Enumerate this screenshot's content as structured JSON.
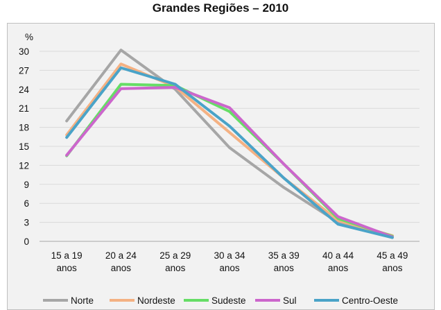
{
  "chart_data": {
    "type": "line",
    "title": "Grandes Regiões – 2010",
    "ylabel": "%",
    "xlabel": "",
    "categories": [
      [
        "15 a 19",
        "anos"
      ],
      [
        "20 a 24",
        "anos"
      ],
      [
        "25 a 29",
        "anos"
      ],
      [
        "30 a 34",
        "anos"
      ],
      [
        "35 a 39",
        "anos"
      ],
      [
        "40 a 44",
        "anos"
      ],
      [
        "45 a 49",
        "anos"
      ]
    ],
    "yticks": [
      0,
      3,
      6,
      9,
      12,
      15,
      18,
      21,
      24,
      27,
      30
    ],
    "ylim": [
      0,
      30
    ],
    "grid": true,
    "legend_position": "bottom",
    "series": [
      {
        "name": "Norte",
        "color": "#a6a6a6",
        "values": [
          19.0,
          30.2,
          24.0,
          14.8,
          8.5,
          3.0,
          0.6
        ]
      },
      {
        "name": "Nordeste",
        "color": "#f4b183",
        "values": [
          16.8,
          28.0,
          24.4,
          17.2,
          10.0,
          3.3,
          0.9
        ]
      },
      {
        "name": "Sudeste",
        "color": "#66dd66",
        "values": [
          13.5,
          24.8,
          24.6,
          20.5,
          12.2,
          3.6,
          0.8
        ]
      },
      {
        "name": "Sul",
        "color": "#cc66cc",
        "values": [
          13.6,
          24.1,
          24.3,
          21.1,
          12.2,
          3.9,
          0.7
        ]
      },
      {
        "name": "Centro-Oeste",
        "color": "#4aa3c8",
        "values": [
          16.4,
          27.4,
          24.8,
          18.2,
          10.0,
          2.7,
          0.6
        ]
      }
    ]
  }
}
